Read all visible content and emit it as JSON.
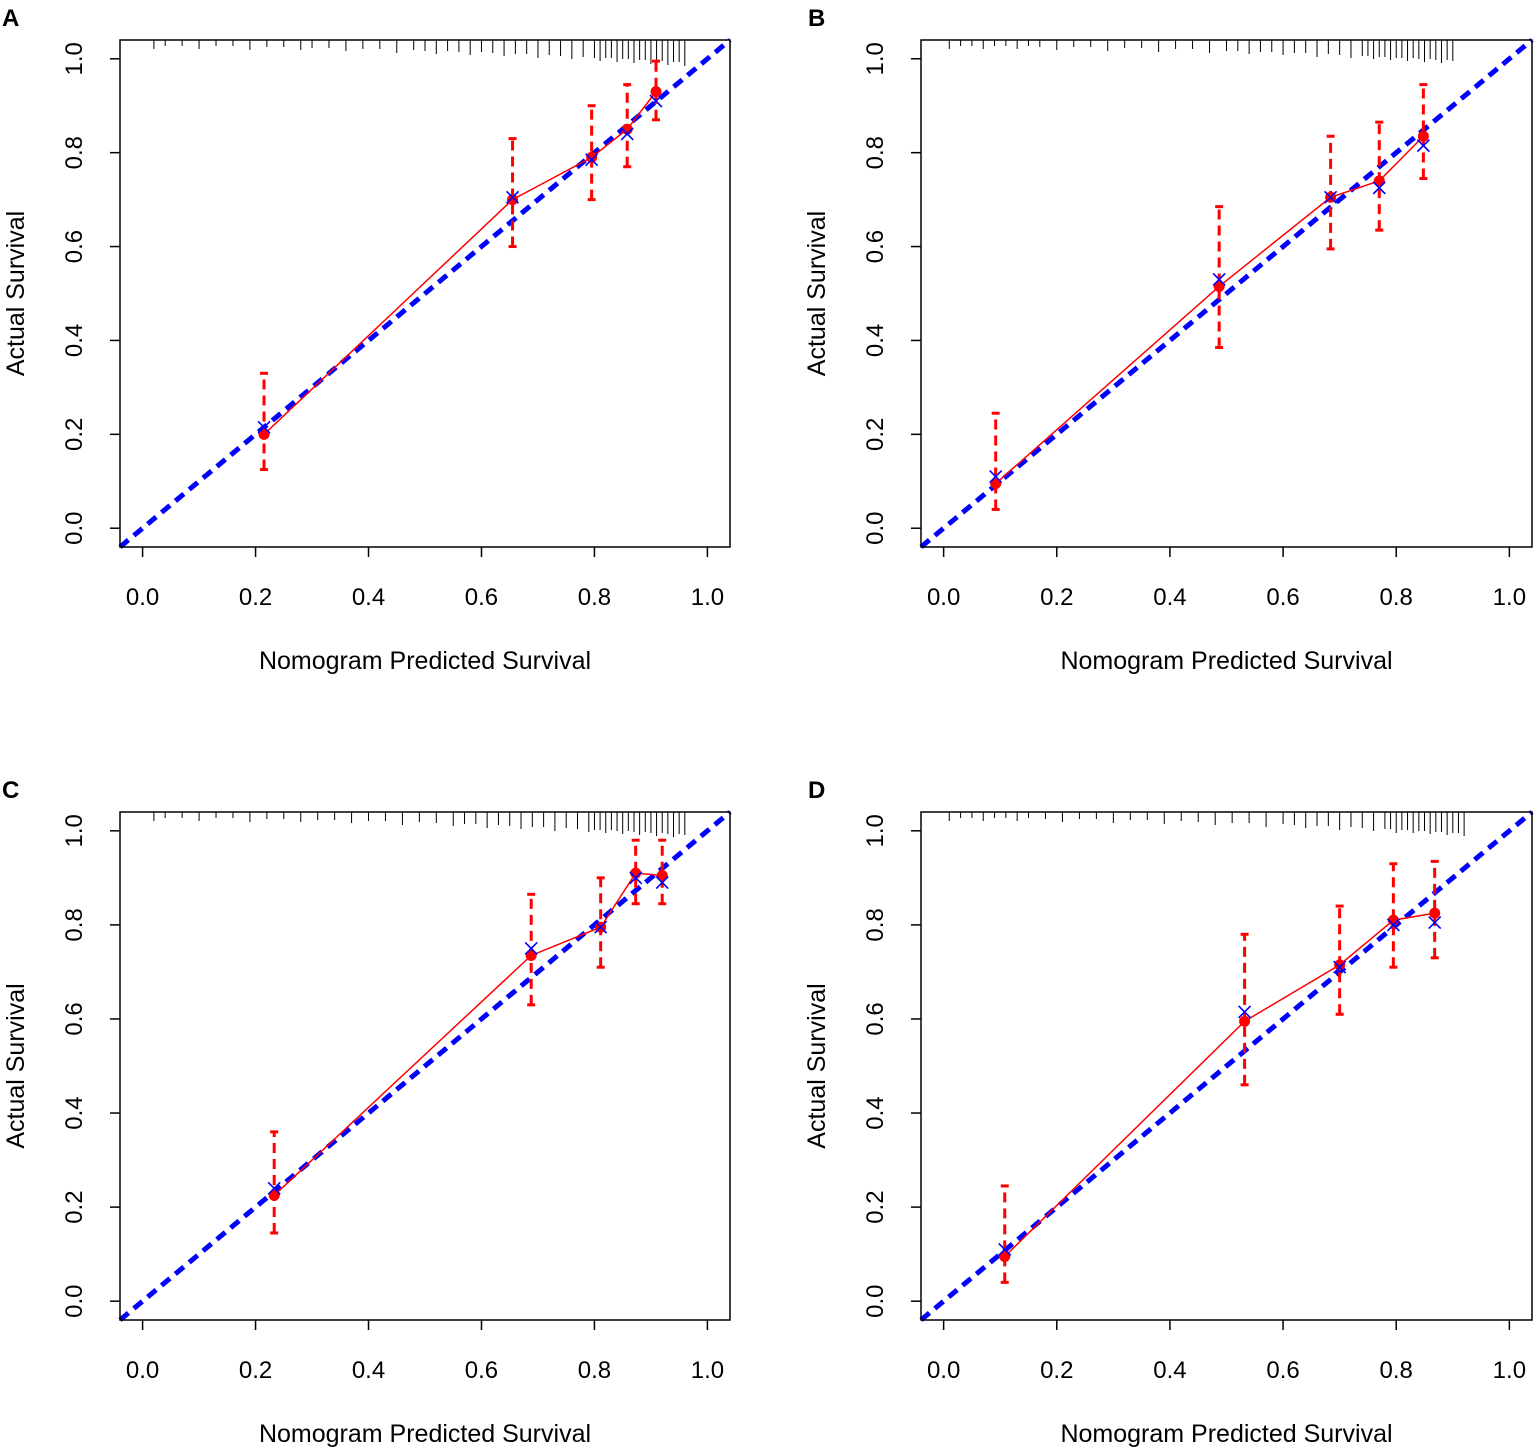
{
  "chart_data": [
    {
      "panel": "A",
      "type": "scatter",
      "xlabel": "Nomogram Predicted Survival",
      "ylabel": "Actual Survival",
      "xlim": [
        -0.04,
        1.04
      ],
      "ylim": [
        -0.04,
        1.04
      ],
      "xticks": [
        "0.0",
        "0.2",
        "0.4",
        "0.6",
        "0.8",
        "1.0"
      ],
      "yticks": [
        "0.0",
        "0.2",
        "0.4",
        "0.6",
        "0.8",
        "1.0"
      ],
      "series": [
        {
          "name": "observed",
          "x": [
            0.215,
            0.655,
            0.795,
            0.858,
            0.909
          ],
          "y": [
            0.2,
            0.7,
            0.79,
            0.85,
            0.93
          ],
          "ci_low": [
            0.125,
            0.6,
            0.7,
            0.77,
            0.87
          ],
          "ci_high": [
            0.33,
            0.83,
            0.9,
            0.945,
            0.995
          ]
        },
        {
          "name": "bias-corrected",
          "x": [
            0.215,
            0.655,
            0.795,
            0.858,
            0.909
          ],
          "y": [
            0.215,
            0.705,
            0.785,
            0.84,
            0.91
          ]
        },
        {
          "name": "ideal",
          "x": [
            -0.04,
            1.04
          ],
          "y": [
            -0.04,
            1.04
          ]
        }
      ],
      "rug": [
        0.02,
        0.04,
        0.07,
        0.1,
        0.13,
        0.16,
        0.19,
        0.22,
        0.25,
        0.28,
        0.3,
        0.33,
        0.36,
        0.39,
        0.42,
        0.45,
        0.48,
        0.5,
        0.52,
        0.54,
        0.56,
        0.58,
        0.6,
        0.62,
        0.64,
        0.66,
        0.68,
        0.7,
        0.72,
        0.74,
        0.76,
        0.78,
        0.8,
        0.81,
        0.82,
        0.83,
        0.84,
        0.85,
        0.86,
        0.87,
        0.88,
        0.89,
        0.9,
        0.91,
        0.92,
        0.93,
        0.94,
        0.95,
        0.96
      ]
    },
    {
      "panel": "B",
      "type": "scatter",
      "xlabel": "Nomogram Predicted Survival",
      "ylabel": "Actual Survival",
      "xlim": [
        -0.04,
        1.04
      ],
      "ylim": [
        -0.04,
        1.04
      ],
      "xticks": [
        "0.0",
        "0.2",
        "0.4",
        "0.6",
        "0.8",
        "1.0"
      ],
      "yticks": [
        "0.0",
        "0.2",
        "0.4",
        "0.6",
        "0.8",
        "1.0"
      ],
      "series": [
        {
          "name": "observed",
          "x": [
            0.092,
            0.487,
            0.684,
            0.77,
            0.848
          ],
          "y": [
            0.095,
            0.515,
            0.705,
            0.74,
            0.835
          ],
          "ci_low": [
            0.04,
            0.385,
            0.595,
            0.635,
            0.745
          ],
          "ci_high": [
            0.245,
            0.685,
            0.835,
            0.865,
            0.945
          ]
        },
        {
          "name": "bias-corrected",
          "x": [
            0.092,
            0.487,
            0.684,
            0.77,
            0.848
          ],
          "y": [
            0.11,
            0.53,
            0.705,
            0.725,
            0.815
          ]
        },
        {
          "name": "ideal",
          "x": [
            -0.04,
            1.04
          ],
          "y": [
            -0.04,
            1.04
          ]
        }
      ],
      "rug": [
        0.01,
        0.03,
        0.05,
        0.07,
        0.09,
        0.11,
        0.13,
        0.15,
        0.17,
        0.2,
        0.23,
        0.26,
        0.29,
        0.32,
        0.35,
        0.38,
        0.41,
        0.44,
        0.47,
        0.5,
        0.52,
        0.54,
        0.56,
        0.58,
        0.6,
        0.62,
        0.64,
        0.66,
        0.68,
        0.7,
        0.72,
        0.74,
        0.75,
        0.76,
        0.77,
        0.78,
        0.79,
        0.8,
        0.81,
        0.82,
        0.83,
        0.84,
        0.85,
        0.86,
        0.87,
        0.88,
        0.89,
        0.9
      ]
    },
    {
      "panel": "C",
      "type": "scatter",
      "xlabel": "Nomogram Predicted Survival",
      "ylabel": "Actual Survival",
      "xlim": [
        -0.04,
        1.04
      ],
      "ylim": [
        -0.04,
        1.04
      ],
      "xticks": [
        "0.0",
        "0.2",
        "0.4",
        "0.6",
        "0.8",
        "1.0"
      ],
      "yticks": [
        "0.0",
        "0.2",
        "0.4",
        "0.6",
        "0.8",
        "1.0"
      ],
      "series": [
        {
          "name": "observed",
          "x": [
            0.233,
            0.688,
            0.811,
            0.873,
            0.92
          ],
          "y": [
            0.225,
            0.735,
            0.795,
            0.91,
            0.905
          ],
          "ci_low": [
            0.145,
            0.63,
            0.71,
            0.845,
            0.845
          ],
          "ci_high": [
            0.36,
            0.865,
            0.9,
            0.98,
            0.98
          ]
        },
        {
          "name": "bias-corrected",
          "x": [
            0.233,
            0.688,
            0.811,
            0.873,
            0.92
          ],
          "y": [
            0.24,
            0.75,
            0.795,
            0.9,
            0.89
          ]
        },
        {
          "name": "ideal",
          "x": [
            -0.04,
            1.04
          ],
          "y": [
            -0.04,
            1.04
          ]
        }
      ],
      "rug": [
        0.02,
        0.04,
        0.07,
        0.1,
        0.13,
        0.16,
        0.19,
        0.22,
        0.25,
        0.28,
        0.31,
        0.34,
        0.37,
        0.4,
        0.43,
        0.46,
        0.49,
        0.52,
        0.55,
        0.57,
        0.59,
        0.61,
        0.63,
        0.65,
        0.67,
        0.69,
        0.71,
        0.73,
        0.75,
        0.77,
        0.79,
        0.8,
        0.81,
        0.82,
        0.83,
        0.84,
        0.85,
        0.86,
        0.87,
        0.88,
        0.89,
        0.9,
        0.91,
        0.92,
        0.93,
        0.94,
        0.95,
        0.96
      ]
    },
    {
      "panel": "D",
      "type": "scatter",
      "xlabel": "Nomogram Predicted Survival",
      "ylabel": "Actual Survival",
      "xlim": [
        -0.04,
        1.04
      ],
      "ylim": [
        -0.04,
        1.04
      ],
      "xticks": [
        "0.0",
        "0.2",
        "0.4",
        "0.6",
        "0.8",
        "1.0"
      ],
      "yticks": [
        "0.0",
        "0.2",
        "0.4",
        "0.6",
        "0.8",
        "1.0"
      ],
      "series": [
        {
          "name": "observed",
          "x": [
            0.108,
            0.532,
            0.7,
            0.795,
            0.868
          ],
          "y": [
            0.095,
            0.595,
            0.715,
            0.81,
            0.825
          ],
          "ci_low": [
            0.04,
            0.46,
            0.61,
            0.71,
            0.73
          ],
          "ci_high": [
            0.245,
            0.78,
            0.84,
            0.93,
            0.935
          ]
        },
        {
          "name": "bias-corrected",
          "x": [
            0.108,
            0.532,
            0.7,
            0.795,
            0.868
          ],
          "y": [
            0.11,
            0.615,
            0.71,
            0.8,
            0.805
          ]
        },
        {
          "name": "ideal",
          "x": [
            -0.04,
            1.04
          ],
          "y": [
            -0.04,
            1.04
          ]
        }
      ],
      "rug": [
        0.01,
        0.03,
        0.05,
        0.07,
        0.09,
        0.11,
        0.13,
        0.15,
        0.18,
        0.21,
        0.24,
        0.27,
        0.3,
        0.33,
        0.36,
        0.39,
        0.42,
        0.45,
        0.48,
        0.51,
        0.54,
        0.57,
        0.6,
        0.62,
        0.64,
        0.66,
        0.68,
        0.7,
        0.72,
        0.74,
        0.76,
        0.78,
        0.79,
        0.8,
        0.81,
        0.82,
        0.83,
        0.84,
        0.85,
        0.86,
        0.87,
        0.88,
        0.89,
        0.9,
        0.91,
        0.92
      ]
    }
  ]
}
